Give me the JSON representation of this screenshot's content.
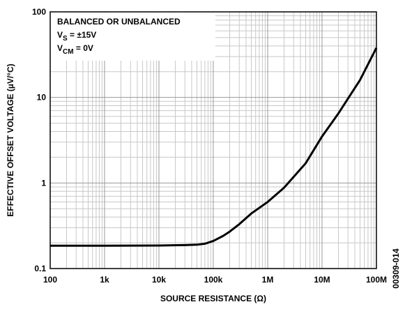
{
  "chart_data": {
    "type": "line",
    "xlabel": "SOURCE RESISTANCE (Ω)",
    "ylabel": "EFFECTIVE OFFSET VOLTAGE (µV/°C)",
    "note": "00309-014",
    "annotations": [
      {
        "text": "BALANCED OR UNBALANCED"
      },
      {
        "text": "V",
        "sub": "S",
        "after": " = ±15V"
      },
      {
        "text": "V",
        "sub": "CM",
        "after": " = 0V"
      }
    ],
    "x": [
      100,
      1000,
      10000,
      30000,
      50000,
      70000,
      100000,
      150000,
      200000,
      300000,
      500000,
      1000000,
      2000000,
      5000000,
      10000000,
      20000000,
      50000000,
      100000000
    ],
    "series": [
      {
        "name": "offset",
        "color": "#000000",
        "values": [
          0.185,
          0.185,
          0.186,
          0.188,
          0.19,
          0.195,
          0.21,
          0.24,
          0.27,
          0.33,
          0.44,
          0.6,
          0.88,
          1.7,
          3.5,
          6.5,
          16,
          38
        ]
      }
    ],
    "xlim": [
      100,
      100000000
    ],
    "ylim": [
      0.1,
      100
    ],
    "xticks": [
      100,
      {
        "value": 1000,
        "label": "1k"
      },
      {
        "value": 10000,
        "label": "10k"
      },
      {
        "value": 100000,
        "label": "100k"
      },
      {
        "value": 1000000,
        "label": "1M"
      },
      {
        "value": 10000000,
        "label": "10M"
      },
      {
        "value": 100000000,
        "label": "100M"
      }
    ],
    "yticks": [
      0.1,
      1,
      10,
      100
    ],
    "xlog": true,
    "ylog": true,
    "grid": true,
    "minor_grid": true
  }
}
